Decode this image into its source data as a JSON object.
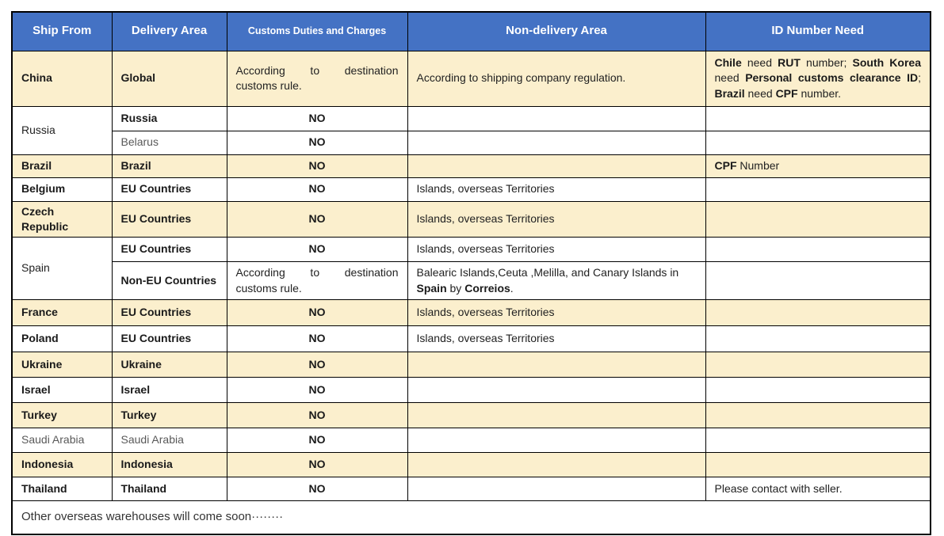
{
  "header": {
    "columns": [
      "Ship From",
      "Delivery Area",
      "Customs Duties and Charges",
      "Non-delivery Area",
      "ID Number Need"
    ]
  },
  "colors": {
    "header_bg": "#4472C4",
    "header_text": "#FFFFFF",
    "row_cream": "#FBEFCD",
    "row_white": "#FFFFFF",
    "border": "#000000",
    "text": "#222222",
    "muted_text": "#595959"
  },
  "rows": [
    {
      "bg": "cream",
      "cells": [
        {
          "col": 0,
          "text": "China",
          "bold": true
        },
        {
          "col": 1,
          "text": "Global",
          "bold": true
        },
        {
          "col": 2,
          "text": "According to destination customs rule.",
          "align": "justify"
        },
        {
          "col": 3,
          "text": "According to shipping company regulation."
        },
        {
          "col": 4,
          "align": "justify",
          "segments": [
            {
              "t": "Chile",
              "bold": true
            },
            {
              "t": " need "
            },
            {
              "t": "RUT",
              "bold": true
            },
            {
              "t": " number; "
            },
            {
              "t": "South Korea",
              "bold": true
            },
            {
              "t": " need "
            },
            {
              "t": "Personal customs clearance ID",
              "bold": true
            },
            {
              "t": "; "
            },
            {
              "t": "Brazil",
              "bold": true
            },
            {
              "t": " need "
            },
            {
              "t": "CPF",
              "bold": true
            },
            {
              "t": " number."
            }
          ]
        }
      ]
    },
    {
      "bg": "white",
      "cells": [
        {
          "col": 0,
          "text": "Russia",
          "rowspan": 2
        },
        {
          "col": 1,
          "text": "Russia",
          "bold": true
        },
        {
          "col": 2,
          "text": "NO",
          "bold": true
        },
        {
          "col": 3,
          "text": ""
        },
        {
          "col": 4,
          "text": ""
        }
      ]
    },
    {
      "bg": "white",
      "cells": [
        {
          "col": 1,
          "text": "Belarus",
          "muted": true
        },
        {
          "col": 2,
          "text": "NO",
          "bold": true
        },
        {
          "col": 3,
          "text": ""
        },
        {
          "col": 4,
          "text": ""
        }
      ]
    },
    {
      "bg": "cream",
      "cells": [
        {
          "col": 0,
          "text": "Brazil",
          "bold": true
        },
        {
          "col": 1,
          "text": "Brazil",
          "bold": true
        },
        {
          "col": 2,
          "text": "NO",
          "bold": true
        },
        {
          "col": 3,
          "text": ""
        },
        {
          "col": 4,
          "segments": [
            {
              "t": "CPF",
              "bold": true
            },
            {
              "t": " Number"
            }
          ]
        }
      ]
    },
    {
      "bg": "white",
      "cells": [
        {
          "col": 0,
          "text": "Belgium",
          "bold": true
        },
        {
          "col": 1,
          "text": "EU Countries",
          "bold": true
        },
        {
          "col": 2,
          "text": "NO",
          "bold": true
        },
        {
          "col": 3,
          "text": "Islands, overseas Territories"
        },
        {
          "col": 4,
          "text": ""
        }
      ]
    },
    {
      "bg": "cream",
      "cells": [
        {
          "col": 0,
          "text": "Czech Republic",
          "bold": true
        },
        {
          "col": 1,
          "text": "EU Countries",
          "bold": true
        },
        {
          "col": 2,
          "text": "NO",
          "bold": true
        },
        {
          "col": 3,
          "text": "Islands, overseas Territories"
        },
        {
          "col": 4,
          "text": ""
        }
      ]
    },
    {
      "bg": "white",
      "cells": [
        {
          "col": 0,
          "text": "Spain",
          "rowspan": 2
        },
        {
          "col": 1,
          "text": "EU Countries",
          "bold": true
        },
        {
          "col": 2,
          "text": "NO",
          "bold": true
        },
        {
          "col": 3,
          "text": "Islands, overseas Territories"
        },
        {
          "col": 4,
          "text": ""
        }
      ]
    },
    {
      "bg": "white",
      "cells": [
        {
          "col": 1,
          "text": "Non-EU Countries",
          "bold": true
        },
        {
          "col": 2,
          "text": "According to destination customs rule.",
          "align": "justify"
        },
        {
          "col": 3,
          "segments": [
            {
              "t": "Balearic Islands,Ceuta ,Melilla, and Canary Islands in "
            },
            {
              "t": "Spain",
              "bold": true
            },
            {
              "t": " by "
            },
            {
              "t": "Correios",
              "bold": true
            },
            {
              "t": "."
            }
          ]
        },
        {
          "col": 4,
          "text": ""
        }
      ]
    },
    {
      "bg": "cream",
      "cells": [
        {
          "col": 0,
          "text": "France",
          "bold": true
        },
        {
          "col": 1,
          "text": "EU Countries",
          "bold": true
        },
        {
          "col": 2,
          "text": "NO",
          "bold": true
        },
        {
          "col": 3,
          "text": "Islands, overseas Territories"
        },
        {
          "col": 4,
          "text": ""
        }
      ]
    },
    {
      "bg": "white",
      "cells": [
        {
          "col": 0,
          "text": "Poland",
          "bold": true
        },
        {
          "col": 1,
          "text": "EU Countries",
          "bold": true
        },
        {
          "col": 2,
          "text": "NO",
          "bold": true
        },
        {
          "col": 3,
          "text": "Islands, overseas Territories"
        },
        {
          "col": 4,
          "text": ""
        }
      ]
    },
    {
      "bg": "cream",
      "cells": [
        {
          "col": 0,
          "text": "Ukraine",
          "bold": true
        },
        {
          "col": 1,
          "text": "Ukraine",
          "bold": true
        },
        {
          "col": 2,
          "text": "NO",
          "bold": true
        },
        {
          "col": 3,
          "text": ""
        },
        {
          "col": 4,
          "text": ""
        }
      ]
    },
    {
      "bg": "white",
      "cells": [
        {
          "col": 0,
          "text": "Israel",
          "bold": true
        },
        {
          "col": 1,
          "text": "Israel",
          "bold": true
        },
        {
          "col": 2,
          "text": "NO",
          "bold": true
        },
        {
          "col": 3,
          "text": ""
        },
        {
          "col": 4,
          "text": ""
        }
      ]
    },
    {
      "bg": "cream",
      "cells": [
        {
          "col": 0,
          "text": "Turkey",
          "bold": true
        },
        {
          "col": 1,
          "text": "Turkey",
          "bold": true
        },
        {
          "col": 2,
          "text": "NO",
          "bold": true
        },
        {
          "col": 3,
          "text": ""
        },
        {
          "col": 4,
          "text": ""
        }
      ]
    },
    {
      "bg": "white",
      "cells": [
        {
          "col": 0,
          "text": "Saudi Arabia",
          "muted": true
        },
        {
          "col": 1,
          "text": "Saudi Arabia",
          "muted": true
        },
        {
          "col": 2,
          "text": "NO",
          "bold": true
        },
        {
          "col": 3,
          "text": ""
        },
        {
          "col": 4,
          "text": ""
        }
      ]
    },
    {
      "bg": "cream",
      "cells": [
        {
          "col": 0,
          "text": "Indonesia",
          "bold": true
        },
        {
          "col": 1,
          "text": "Indonesia",
          "bold": true
        },
        {
          "col": 2,
          "text": "NO",
          "bold": true
        },
        {
          "col": 3,
          "text": ""
        },
        {
          "col": 4,
          "text": ""
        }
      ]
    },
    {
      "bg": "white",
      "cells": [
        {
          "col": 0,
          "text": "Thailand",
          "bold": true
        },
        {
          "col": 1,
          "text": "Thailand",
          "bold": true
        },
        {
          "col": 2,
          "text": "NO",
          "bold": true
        },
        {
          "col": 3,
          "text": ""
        },
        {
          "col": 4,
          "text": "Please contact with seller."
        }
      ]
    }
  ],
  "footer": {
    "text": "Other overseas warehouses will come soon········"
  }
}
